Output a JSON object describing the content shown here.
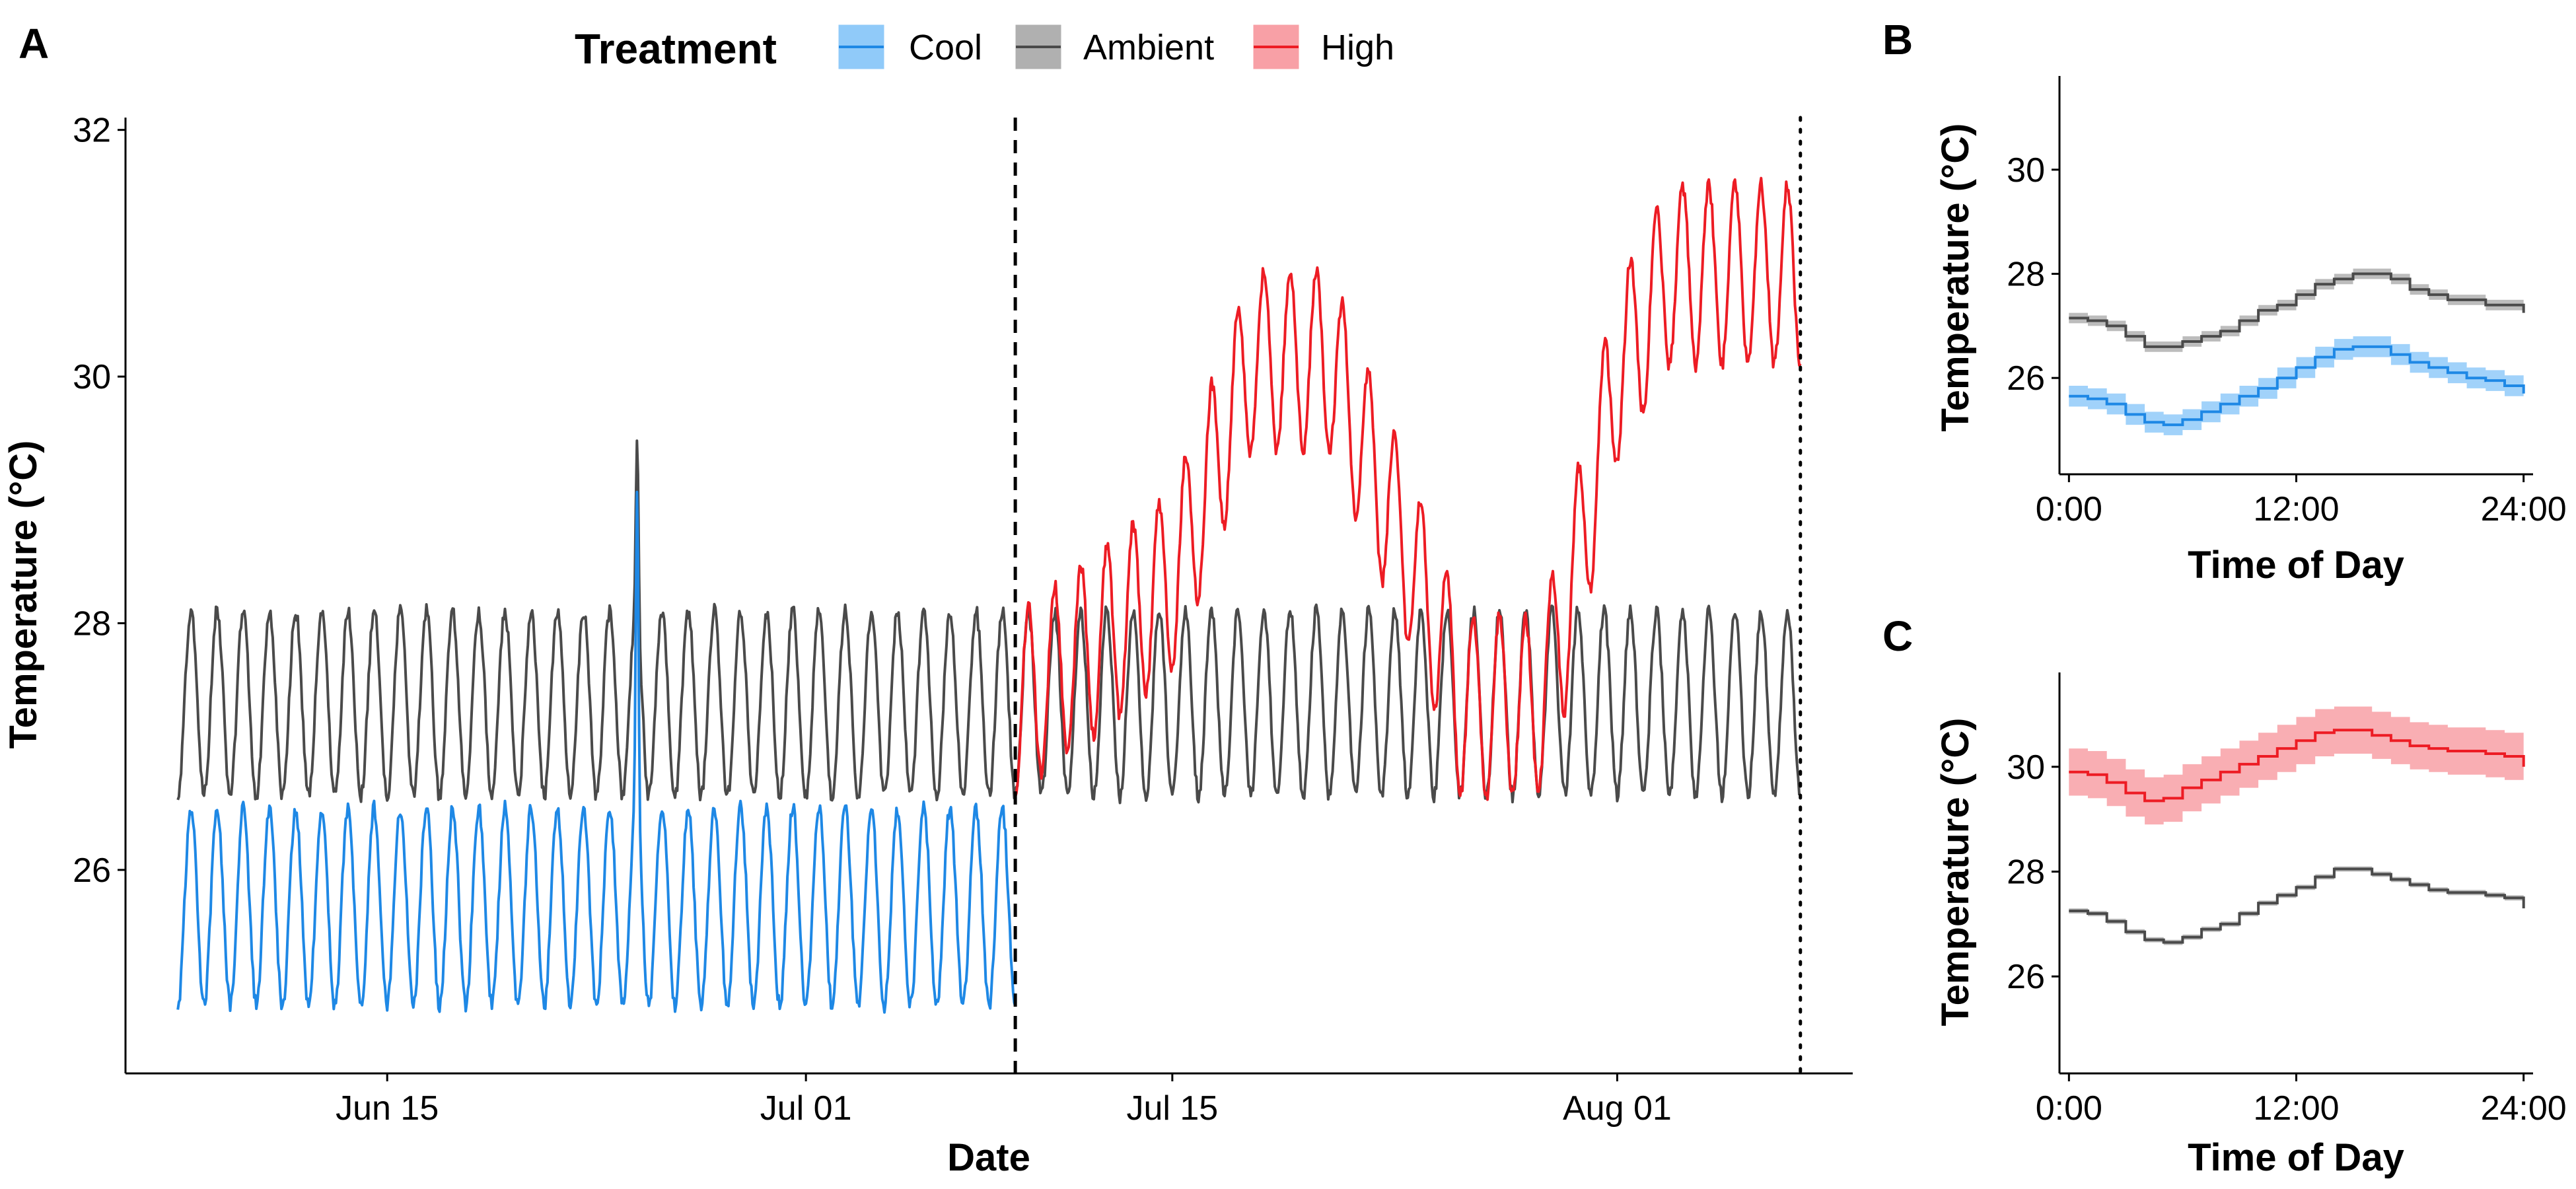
{
  "panels": {
    "a": "A",
    "b": "B",
    "c": "C"
  },
  "legend": {
    "title": "Treatment",
    "items": [
      {
        "label": "Cool",
        "line": "#1E88E5",
        "fill": "#90CAF9"
      },
      {
        "label": "Ambient",
        "line": "#4a4a4a",
        "fill": "#b0b0b0"
      },
      {
        "label": "High",
        "line": "#ED1C24",
        "fill": "#F8A0A6"
      }
    ]
  },
  "chart_data": [
    {
      "id": "A",
      "type": "line",
      "xlabel": "Date",
      "ylabel": "Temperature (°C)",
      "ylim": [
        24.35,
        32.1
      ],
      "xlim": [
        "2025-06-05",
        "2025-08-10"
      ],
      "x_ticks": [
        "Jun 15",
        "Jul 01",
        "Jul 15",
        "Aug 01"
      ],
      "y_ticks": [
        26,
        28,
        30,
        32
      ],
      "grid": false,
      "legend_position": "top",
      "vlines": [
        {
          "date": "2025-07-09",
          "style": "dashed"
        },
        {
          "date": "2025-08-08",
          "style": "dotted"
        }
      ],
      "series": [
        {
          "name": "Ambient",
          "color": "#4a4a4a",
          "start": "2025-06-07",
          "end": "2025-08-08",
          "daily_min": 26.6,
          "daily_max": 28.1,
          "spike": {
            "date": "2025-06-24",
            "value": 29.5
          }
        },
        {
          "name": "Cool",
          "color": "#1E88E5",
          "start": "2025-06-07",
          "end": "2025-07-09",
          "daily_min": 24.9,
          "daily_max": 26.5,
          "spike": {
            "date": "2025-06-24",
            "value": 29.1
          }
        },
        {
          "name": "High",
          "color": "#ED1C24",
          "start": "2025-07-09",
          "end": "2025-08-08",
          "daily_min_points": [
            [
              "2025-07-09",
              26.6
            ],
            [
              "2025-07-15",
              27.6
            ],
            [
              "2025-07-18",
              29.4
            ],
            [
              "2025-07-21",
              29.4
            ],
            [
              "2025-07-25",
              27.3
            ],
            [
              "2025-07-26",
              26.6
            ],
            [
              "2025-07-29",
              26.6
            ],
            [
              "2025-07-30",
              27.3
            ],
            [
              "2025-08-01",
              29.3
            ],
            [
              "2025-08-03",
              30.1
            ],
            [
              "2025-08-08",
              30.1
            ]
          ],
          "daily_amplitude": 1.45
        }
      ]
    },
    {
      "id": "B",
      "type": "line",
      "xlabel": "Time of Day",
      "ylabel": "Temperature (°C)",
      "x_ticks": [
        "0:00",
        "12:00",
        "24:00"
      ],
      "xlim": [
        -0.5,
        24.5
      ],
      "ylim": [
        24.15,
        31.8
      ],
      "y_ticks": [
        26,
        28,
        30
      ],
      "series": [
        {
          "name": "Ambient",
          "color": "#4a4a4a",
          "band": 0.1,
          "x": [
            0,
            1,
            2,
            3,
            4,
            5,
            6,
            7,
            8,
            9,
            10,
            11,
            12,
            13,
            14,
            15,
            16,
            17,
            18,
            19,
            20,
            21,
            22,
            23,
            24
          ],
          "y": [
            27.15,
            27.1,
            27.0,
            26.8,
            26.6,
            26.6,
            26.7,
            26.8,
            26.9,
            27.1,
            27.3,
            27.4,
            27.6,
            27.8,
            27.9,
            28.0,
            28.0,
            27.9,
            27.7,
            27.6,
            27.5,
            27.5,
            27.4,
            27.4,
            27.25
          ]
        },
        {
          "name": "Cool",
          "color": "#1E88E5",
          "band": 0.2,
          "x": [
            0,
            1,
            2,
            3,
            4,
            5,
            6,
            7,
            8,
            9,
            10,
            11,
            12,
            13,
            14,
            15,
            16,
            17,
            18,
            19,
            20,
            21,
            22,
            23,
            24
          ],
          "y": [
            25.65,
            25.6,
            25.5,
            25.3,
            25.15,
            25.1,
            25.2,
            25.35,
            25.5,
            25.65,
            25.8,
            26.0,
            26.2,
            26.4,
            26.55,
            26.6,
            26.6,
            26.45,
            26.3,
            26.2,
            26.1,
            26.0,
            25.95,
            25.85,
            25.7
          ]
        }
      ]
    },
    {
      "id": "C",
      "type": "line",
      "xlabel": "Time of Day",
      "ylabel": "Temperature (°C)",
      "x_ticks": [
        "0:00",
        "12:00",
        "24:00"
      ],
      "xlim": [
        -0.5,
        24.5
      ],
      "ylim": [
        24.15,
        31.8
      ],
      "y_ticks": [
        26,
        28,
        30
      ],
      "series": [
        {
          "name": "High",
          "color": "#ED1C24",
          "band": 0.45,
          "x": [
            0,
            1,
            2,
            3,
            4,
            5,
            6,
            7,
            8,
            9,
            10,
            11,
            12,
            13,
            14,
            15,
            16,
            17,
            18,
            19,
            20,
            21,
            22,
            23,
            24
          ],
          "y": [
            29.9,
            29.85,
            29.7,
            29.5,
            29.35,
            29.4,
            29.6,
            29.75,
            29.9,
            30.05,
            30.2,
            30.35,
            30.5,
            30.65,
            30.7,
            30.7,
            30.6,
            30.5,
            30.4,
            30.35,
            30.3,
            30.3,
            30.25,
            30.2,
            30.0
          ]
        },
        {
          "name": "Ambient",
          "color": "#4a4a4a",
          "band": 0.05,
          "x": [
            0,
            1,
            2,
            3,
            4,
            5,
            6,
            7,
            8,
            9,
            10,
            11,
            12,
            13,
            14,
            15,
            16,
            17,
            18,
            19,
            20,
            21,
            22,
            23,
            24
          ],
          "y": [
            27.25,
            27.2,
            27.05,
            26.85,
            26.7,
            26.65,
            26.75,
            26.9,
            27.0,
            27.2,
            27.4,
            27.55,
            27.7,
            27.9,
            28.05,
            28.05,
            27.95,
            27.85,
            27.75,
            27.65,
            27.6,
            27.6,
            27.55,
            27.5,
            27.3
          ]
        }
      ]
    }
  ]
}
